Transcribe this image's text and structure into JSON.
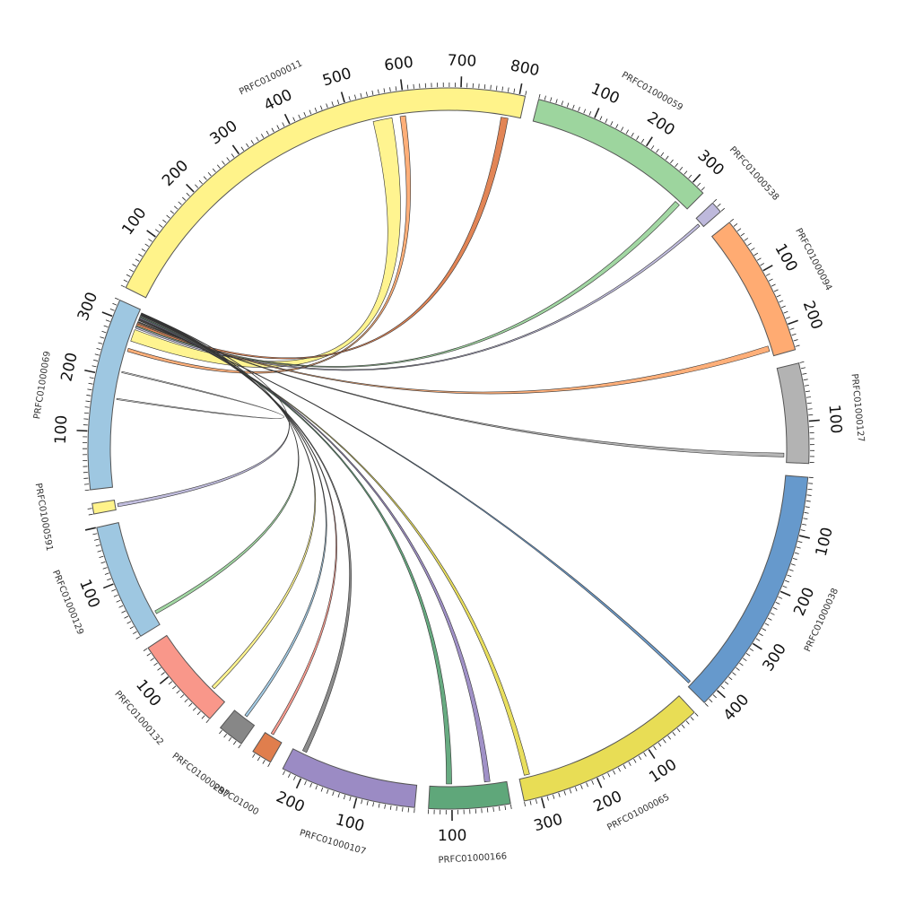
{
  "diagram": {
    "type": "circos",
    "segments": [
      {
        "id": "s011",
        "label": "PRFC01000011",
        "color": "#FFF38A",
        "length": 810,
        "ticks": [
          "100",
          "200",
          "300",
          "400",
          "500",
          "600",
          "700",
          "800"
        ]
      },
      {
        "id": "s059",
        "label": "PRFC01000059",
        "color": "#9DD59E",
        "length": 325,
        "ticks": [
          "100",
          "200",
          "300"
        ]
      },
      {
        "id": "s538",
        "label": "PRFC01000538",
        "color": "#BEB9DC",
        "length": 20,
        "ticks": []
      },
      {
        "id": "s094",
        "label": "PRFC01000094",
        "color": "#FFAB72",
        "length": 245,
        "ticks": [
          "100",
          "200"
        ]
      },
      {
        "id": "s127",
        "label": "PRFC01000127",
        "color": "#B3B3B3",
        "length": 172,
        "ticks": [
          "100"
        ]
      },
      {
        "id": "s038",
        "label": "PRFC01000038",
        "color": "#6699CC",
        "length": 430,
        "ticks": [
          "100",
          "200",
          "300",
          "400"
        ]
      },
      {
        "id": "s065",
        "label": "PRFC01000065",
        "color": "#E8DD55",
        "length": 330,
        "ticks": [
          "100",
          "200",
          "300"
        ]
      },
      {
        "id": "s166",
        "label": "PRFC01000166",
        "color": "#5FA77A",
        "length": 140,
        "ticks": [
          "100"
        ]
      },
      {
        "id": "s107",
        "label": "PRFC01000107",
        "color": "#9B8BC4",
        "length": 235,
        "ticks": [
          "100",
          "200"
        ]
      },
      {
        "id": "s0xx",
        "label": "PRFC01000",
        "color": "#E07E4D",
        "length": 35,
        "ticks": []
      },
      {
        "id": "s297",
        "label": "PRFC01000297",
        "color": "#878787",
        "length": 45,
        "ticks": []
      },
      {
        "id": "s132",
        "label": "PRFC01000132",
        "color": "#F9978A",
        "length": 160,
        "ticks": [
          "100"
        ]
      },
      {
        "id": "s129",
        "label": "PRFC01000129",
        "color": "#9EC7E1",
        "length": 200,
        "ticks": [
          "100"
        ]
      },
      {
        "id": "s591",
        "label": "PRFC01000591",
        "color": "#FFF38A",
        "length": 18,
        "ticks": []
      },
      {
        "id": "s069",
        "label": "PRFC01000069",
        "color": "#9EC7E1",
        "length": 330,
        "ticks": [
          "100",
          "200",
          "300"
        ]
      }
    ],
    "links": [
      {
        "color": "#FFF38A",
        "a": [
          "s069",
          270,
          292
        ],
        "b": [
          "s011",
          540,
          575
        ]
      },
      {
        "color": "#FFAB72",
        "a": [
          "s069",
          250,
          256
        ],
        "b": [
          "s011",
          590,
          600
        ]
      },
      {
        "color": "#E07E4D",
        "a": [
          "s069",
          300,
          304
        ],
        "b": [
          "s011",
          775,
          788
        ]
      },
      {
        "color": "#9DD59E",
        "a": [
          "s069",
          298,
          300
        ],
        "b": [
          "s059",
          300,
          310
        ]
      },
      {
        "color": "#BEB9DC",
        "a": [
          "s069",
          295,
          298
        ],
        "b": [
          "s538",
          10,
          15
        ]
      },
      {
        "color": "#FFAB72",
        "a": [
          "s069",
          304,
          306
        ],
        "b": [
          "s094",
          225,
          235
        ]
      },
      {
        "color": "#B3B3B3",
        "a": [
          "s069",
          307,
          308
        ],
        "b": [
          "s127",
          155,
          162
        ]
      },
      {
        "color": "#6699CC",
        "a": [
          "s069",
          310,
          311
        ],
        "b": [
          "s038",
          420,
          425
        ]
      },
      {
        "color": "#E8DD55",
        "a": [
          "s069",
          312,
          313
        ],
        "b": [
          "s065",
          310,
          320
        ]
      },
      {
        "color": "#9B8BC4",
        "a": [
          "s069",
          314,
          316
        ],
        "b": [
          "s166",
          30,
          40
        ]
      },
      {
        "color": "#5FA77A",
        "a": [
          "s069",
          316,
          318
        ],
        "b": [
          "s166",
          100,
          110
        ]
      },
      {
        "color": "#878787",
        "a": [
          "s069",
          318,
          320
        ],
        "b": [
          "s107",
          210,
          218
        ]
      },
      {
        "color": "#F9978A",
        "a": [
          "s069",
          320,
          321
        ],
        "b": [
          "s0xx",
          20,
          25
        ]
      },
      {
        "color": "#9EC7E1",
        "a": [
          "s069",
          321,
          322
        ],
        "b": [
          "s297",
          20,
          25
        ]
      },
      {
        "color": "#FFF38A",
        "a": [
          "s069",
          322,
          323
        ],
        "b": [
          "s132",
          30,
          36
        ]
      },
      {
        "color": "#9DD59E",
        "a": [
          "s069",
          323,
          324
        ],
        "b": [
          "s129",
          20,
          26
        ]
      },
      {
        "color": "#BEB9DC",
        "a": [
          "s069",
          324,
          325
        ],
        "b": [
          "s591",
          5,
          11
        ]
      },
      {
        "color": "#FFFFFF",
        "a": [
          "s069",
          160,
          162
        ],
        "b": [
          "s069",
          210,
          212
        ]
      }
    ]
  }
}
